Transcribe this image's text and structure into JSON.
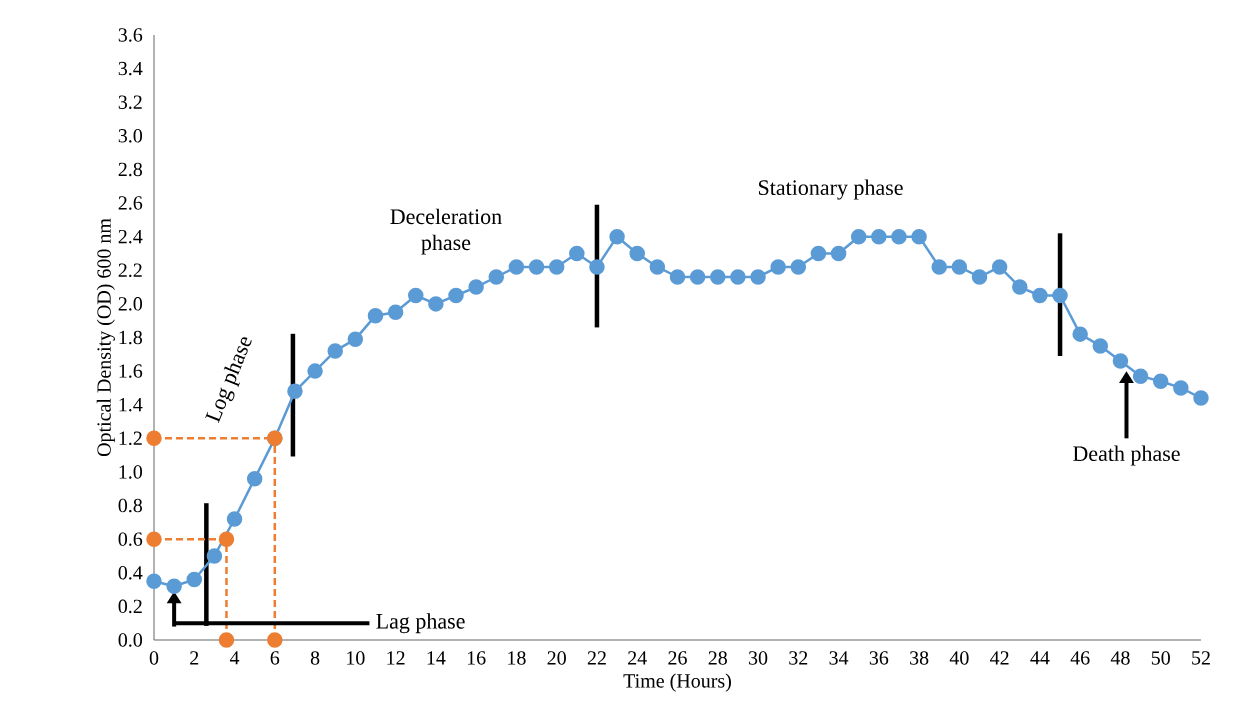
{
  "chart_data": {
    "type": "line",
    "xlabel": "Time (Hours)",
    "ylabel": "Optical Density (OD) 600 nm",
    "x": [
      0,
      1,
      2,
      3,
      4,
      5,
      6,
      7,
      8,
      9,
      10,
      11,
      12,
      13,
      14,
      15,
      16,
      17,
      18,
      19,
      20,
      21,
      22,
      23,
      24,
      25,
      26,
      27,
      28,
      29,
      30,
      31,
      32,
      33,
      34,
      35,
      36,
      37,
      38,
      39,
      40,
      41,
      42,
      43,
      44,
      45,
      46,
      47,
      48,
      49,
      50,
      51,
      52
    ],
    "series": [
      {
        "color": "#5b9bd5",
        "marker": "circle",
        "values": [
          0.35,
          0.32,
          0.36,
          0.5,
          0.72,
          0.96,
          1.2,
          1.48,
          1.6,
          1.72,
          1.79,
          1.93,
          1.95,
          2.05,
          2.0,
          2.05,
          2.1,
          2.16,
          2.22,
          2.22,
          2.22,
          2.3,
          2.22,
          2.4,
          2.3,
          2.22,
          2.16,
          2.16,
          2.16,
          2.16,
          2.16,
          2.22,
          2.22,
          2.3,
          2.3,
          2.4,
          2.4,
          2.4,
          2.4,
          2.22,
          2.22,
          2.16,
          2.22,
          2.1,
          2.05,
          2.05,
          1.82,
          1.75,
          1.66,
          1.57,
          1.54,
          1.5,
          1.44
        ]
      },
      {
        "color": "#ed7d31",
        "marker": "circle",
        "line_style": "dashed",
        "x": [
          0,
          6
        ],
        "values": [
          1.2,
          1.2
        ]
      },
      {
        "color": "#ed7d31",
        "marker": "circle",
        "line_style": "dashed",
        "x": [
          0,
          3.6
        ],
        "values": [
          0.6,
          0.6
        ]
      },
      {
        "type": "scatter",
        "color": "#ed7d31",
        "marker": "circle",
        "x": [
          3.6,
          6
        ],
        "values": [
          0,
          0
        ]
      }
    ],
    "xlim": [
      0,
      52
    ],
    "ylim": [
      0,
      3.6
    ],
    "xticks": [
      0,
      2,
      4,
      6,
      8,
      10,
      12,
      14,
      16,
      18,
      20,
      22,
      24,
      26,
      28,
      30,
      32,
      34,
      36,
      38,
      40,
      42,
      44,
      46,
      48,
      50,
      52
    ],
    "yticks": [
      {
        "value": 0,
        "label": "0.0"
      },
      0.2,
      0.4,
      0.6,
      0.8,
      {
        "value": 1,
        "label": "1.0"
      },
      1.2,
      1.4,
      1.6,
      1.8,
      {
        "value": 2,
        "label": "2.0"
      },
      2.2,
      2.4,
      2.6,
      2.8,
      {
        "value": 3,
        "label": "3.0"
      },
      3.2,
      3.4,
      3.6
    ],
    "ref_lines": [
      {
        "axis": "x",
        "value": 6,
        "color": "#ed7d31",
        "line_style": "dashed"
      },
      {
        "axis": "x",
        "value": 3.6,
        "color": "#ed7d31",
        "line_style": "dashed"
      },
      {
        "axis": "x",
        "value": 2.6,
        "color": "#000000",
        "line_style": "solid"
      },
      {
        "axis": "x",
        "value": 6.9,
        "color": "#000000",
        "line_style": "solid"
      },
      {
        "axis": "x",
        "value": 22,
        "color": "#000000",
        "line_style": "solid"
      },
      {
        "axis": "x",
        "value": 45,
        "color": "#000000",
        "line_style": "solid"
      }
    ],
    "annotations": [
      "Lag phase",
      "Log phase",
      "Deceleration phase",
      "Stationary phase",
      "Death phase"
    ]
  }
}
